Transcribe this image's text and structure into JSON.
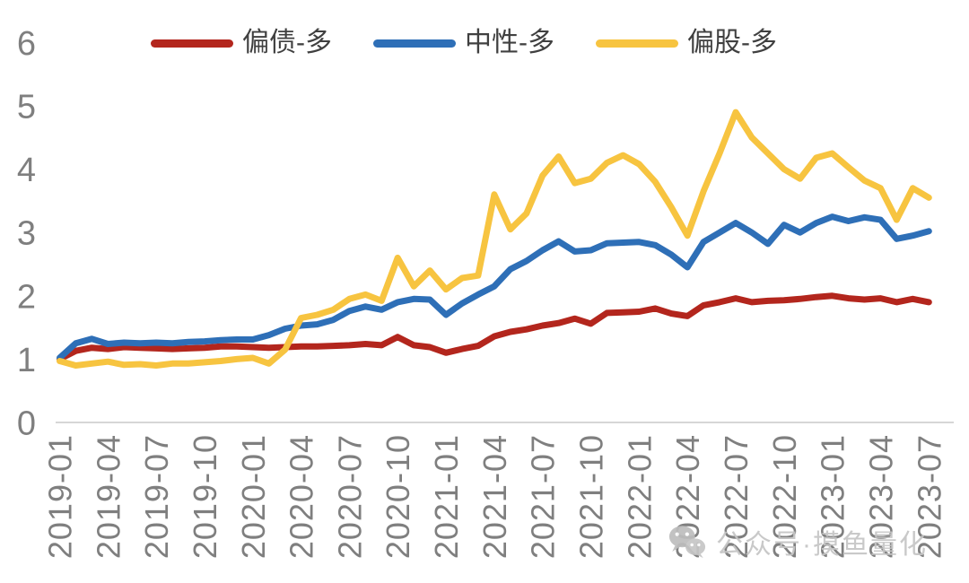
{
  "watermark": {
    "text": "公众号·摸鱼量化",
    "icon": "wechat-icon"
  },
  "axis_colors": {
    "tick_text": "#7f7f7f",
    "baseline": "#d6d6d6"
  },
  "chart_data": {
    "type": "line",
    "title": "",
    "xlabel": "",
    "ylabel": "",
    "ylim": [
      0,
      6
    ],
    "yticks": [
      0,
      1,
      2,
      3,
      4,
      5,
      6
    ],
    "grid": false,
    "legend_position": "top",
    "x_tick_step": 3,
    "x": [
      "2019-01",
      "2019-02",
      "2019-03",
      "2019-04",
      "2019-05",
      "2019-06",
      "2019-07",
      "2019-08",
      "2019-09",
      "2019-10",
      "2019-11",
      "2019-12",
      "2020-01",
      "2020-02",
      "2020-03",
      "2020-04",
      "2020-05",
      "2020-06",
      "2020-07",
      "2020-08",
      "2020-09",
      "2020-10",
      "2020-11",
      "2020-12",
      "2021-01",
      "2021-02",
      "2021-03",
      "2021-04",
      "2021-05",
      "2021-06",
      "2021-07",
      "2021-08",
      "2021-09",
      "2021-10",
      "2021-11",
      "2021-12",
      "2022-01",
      "2022-02",
      "2022-03",
      "2022-04",
      "2022-05",
      "2022-06",
      "2022-07",
      "2022-08",
      "2022-09",
      "2022-10",
      "2022-11",
      "2022-12",
      "2023-01",
      "2023-02",
      "2023-03",
      "2023-04",
      "2023-05",
      "2023-06",
      "2023-07"
    ],
    "series": [
      {
        "name": "偏债-多",
        "color": "#b3261d",
        "values": [
          1.0,
          1.13,
          1.18,
          1.16,
          1.19,
          1.18,
          1.17,
          1.16,
          1.17,
          1.18,
          1.2,
          1.2,
          1.19,
          1.18,
          1.19,
          1.2,
          1.2,
          1.21,
          1.22,
          1.24,
          1.22,
          1.35,
          1.22,
          1.19,
          1.1,
          1.16,
          1.21,
          1.36,
          1.43,
          1.47,
          1.53,
          1.57,
          1.64,
          1.56,
          1.73,
          1.74,
          1.75,
          1.8,
          1.72,
          1.68,
          1.85,
          1.9,
          1.96,
          1.9,
          1.92,
          1.93,
          1.95,
          1.98,
          2.0,
          1.96,
          1.94,
          1.96,
          1.9,
          1.95,
          1.9
        ]
      },
      {
        "name": "中性-多",
        "color": "#2e6fb7",
        "values": [
          1.02,
          1.25,
          1.32,
          1.24,
          1.26,
          1.25,
          1.26,
          1.25,
          1.27,
          1.28,
          1.3,
          1.31,
          1.31,
          1.38,
          1.48,
          1.53,
          1.55,
          1.62,
          1.76,
          1.83,
          1.78,
          1.9,
          1.95,
          1.94,
          1.7,
          1.88,
          2.02,
          2.15,
          2.42,
          2.55,
          2.72,
          2.86,
          2.7,
          2.72,
          2.83,
          2.84,
          2.85,
          2.8,
          2.65,
          2.45,
          2.85,
          3.0,
          3.15,
          3.0,
          2.82,
          3.12,
          3.0,
          3.15,
          3.25,
          3.18,
          3.24,
          3.2,
          2.9,
          2.95,
          3.02
        ]
      },
      {
        "name": "偏股-多",
        "color": "#f7c440",
        "values": [
          0.97,
          0.9,
          0.93,
          0.96,
          0.91,
          0.92,
          0.9,
          0.93,
          0.93,
          0.95,
          0.97,
          1.0,
          1.02,
          0.93,
          1.15,
          1.65,
          1.7,
          1.78,
          1.95,
          2.02,
          1.92,
          2.6,
          2.15,
          2.4,
          2.1,
          2.28,
          2.32,
          3.6,
          3.05,
          3.3,
          3.9,
          4.2,
          3.78,
          3.85,
          4.1,
          4.22,
          4.08,
          3.8,
          3.4,
          2.95,
          3.65,
          4.25,
          4.9,
          4.5,
          4.25,
          4.0,
          3.85,
          4.18,
          4.25,
          4.03,
          3.82,
          3.7,
          3.2,
          3.7,
          3.55
        ]
      }
    ]
  }
}
